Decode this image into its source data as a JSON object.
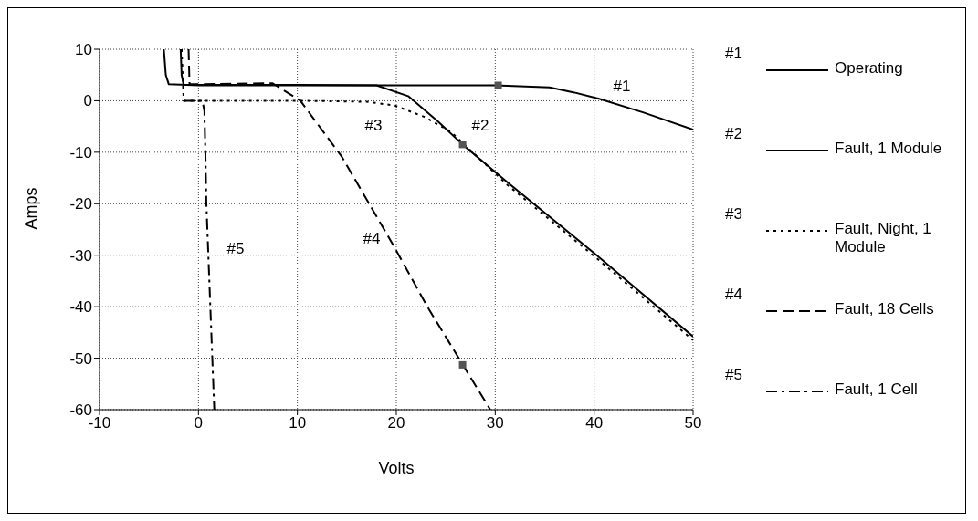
{
  "chart_data": {
    "type": "line",
    "xlabel": "Volts",
    "ylabel": "Amps",
    "xlim": [
      -10,
      50
    ],
    "xticks": [
      -10,
      0,
      10,
      20,
      30,
      40,
      50
    ],
    "ylim": [
      -60,
      10
    ],
    "yticks": [
      -60,
      -50,
      -40,
      -30,
      -20,
      -10,
      0,
      10
    ],
    "grid": true,
    "legend": "right",
    "marker": "none",
    "series": [
      {
        "name": "Operating",
        "color": "#000000",
        "line_style": "solid",
        "x": [
          -3.5,
          -3.3,
          -3.0,
          0,
          10,
          20,
          30,
          35.5,
          38,
          40.5,
          45,
          50
        ],
        "values": [
          10,
          5,
          3.2,
          3,
          3,
          3,
          3,
          2.6,
          1.6,
          0.4,
          -2.3,
          -5.6
        ]
      },
      {
        "name": "Fault, 1 Module",
        "color": "#000000",
        "line_style": "solid",
        "x": [
          -1.8,
          -1.7,
          -1.5,
          10,
          18,
          21.2,
          24.2,
          26.7,
          31.2,
          40.2,
          50
        ],
        "values": [
          10,
          5,
          3.1,
          3.1,
          3,
          0.9,
          -4,
          -8.5,
          -15.8,
          -29.9,
          -45.8
        ]
      },
      {
        "name": "Fault, Night, 1 Module",
        "color": "#000000",
        "line_style": "dotted",
        "x": [
          -1.7,
          -1.5,
          0,
          10,
          17,
          19.8,
          22.8,
          25.5,
          31.2,
          40.2,
          50
        ],
        "values": [
          10,
          0,
          0,
          0,
          -0.2,
          -0.9,
          -3.1,
          -6,
          -16.3,
          -30.5,
          -46.5
        ]
      },
      {
        "name": "Fault, 18 Cells",
        "color": "#000000",
        "line_style": "dashed",
        "x": [
          -1.0,
          -0.9,
          0,
          7.5,
          10.3,
          14.5,
          19.8,
          23.2,
          29.5
        ],
        "values": [
          10,
          3.2,
          3.2,
          3.4,
          0,
          -10.9,
          -28.4,
          -40.2,
          -60
        ]
      },
      {
        "name": "Fault, 1 Cell",
        "color": "#000000",
        "line_style": "dashdot",
        "x": [
          -1.5,
          0.4,
          0.6,
          0.7,
          0.8,
          1.0,
          1.2,
          1.4,
          1.6
        ],
        "values": [
          0,
          0,
          -2,
          -10,
          -20,
          -30,
          -40,
          -50,
          -60
        ]
      },
      {
        "type": "scatter",
        "marker": "square",
        "color": "#555555",
        "x": [
          30.3,
          26.7,
          26.7
        ],
        "values": [
          3,
          -8.5,
          -51.3
        ]
      }
    ],
    "annotations": [
      "#1",
      "#2",
      "#3",
      "#4",
      "#5",
      "#1",
      "#2",
      "#3",
      "#4",
      "#5"
    ]
  }
}
